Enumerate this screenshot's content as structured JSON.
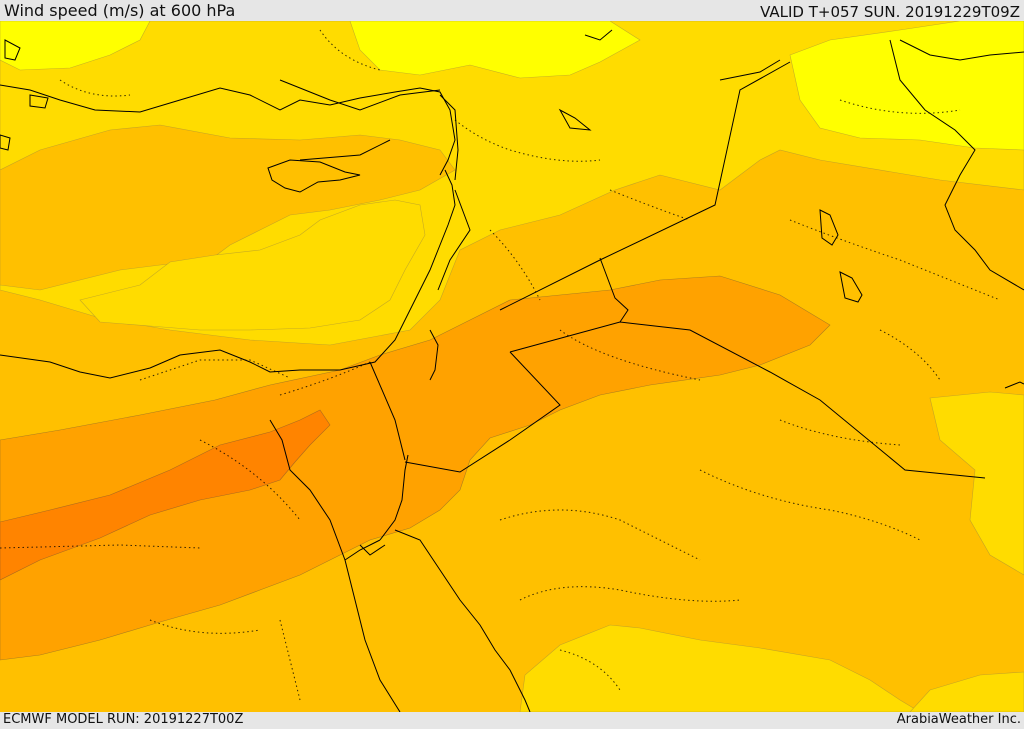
{
  "header": {
    "title": "Wind speed (m/s) at 600 hPa",
    "valid_time": "VALID T+057 SUN. 20191229T09Z"
  },
  "footer": {
    "model_run": "ECMWF MODEL RUN: 20191227T00Z",
    "credit": "ArabiaWeather Inc."
  },
  "map": {
    "variable": "wind speed",
    "pressure_level_hpa": 600,
    "units": "m/s",
    "colors": {
      "lightest": "#ffff00",
      "light": "#ffdc00",
      "medium": "#ffc000",
      "strong": "#ffa200",
      "strongest": "#ff8400",
      "coastline": "#000000"
    }
  }
}
